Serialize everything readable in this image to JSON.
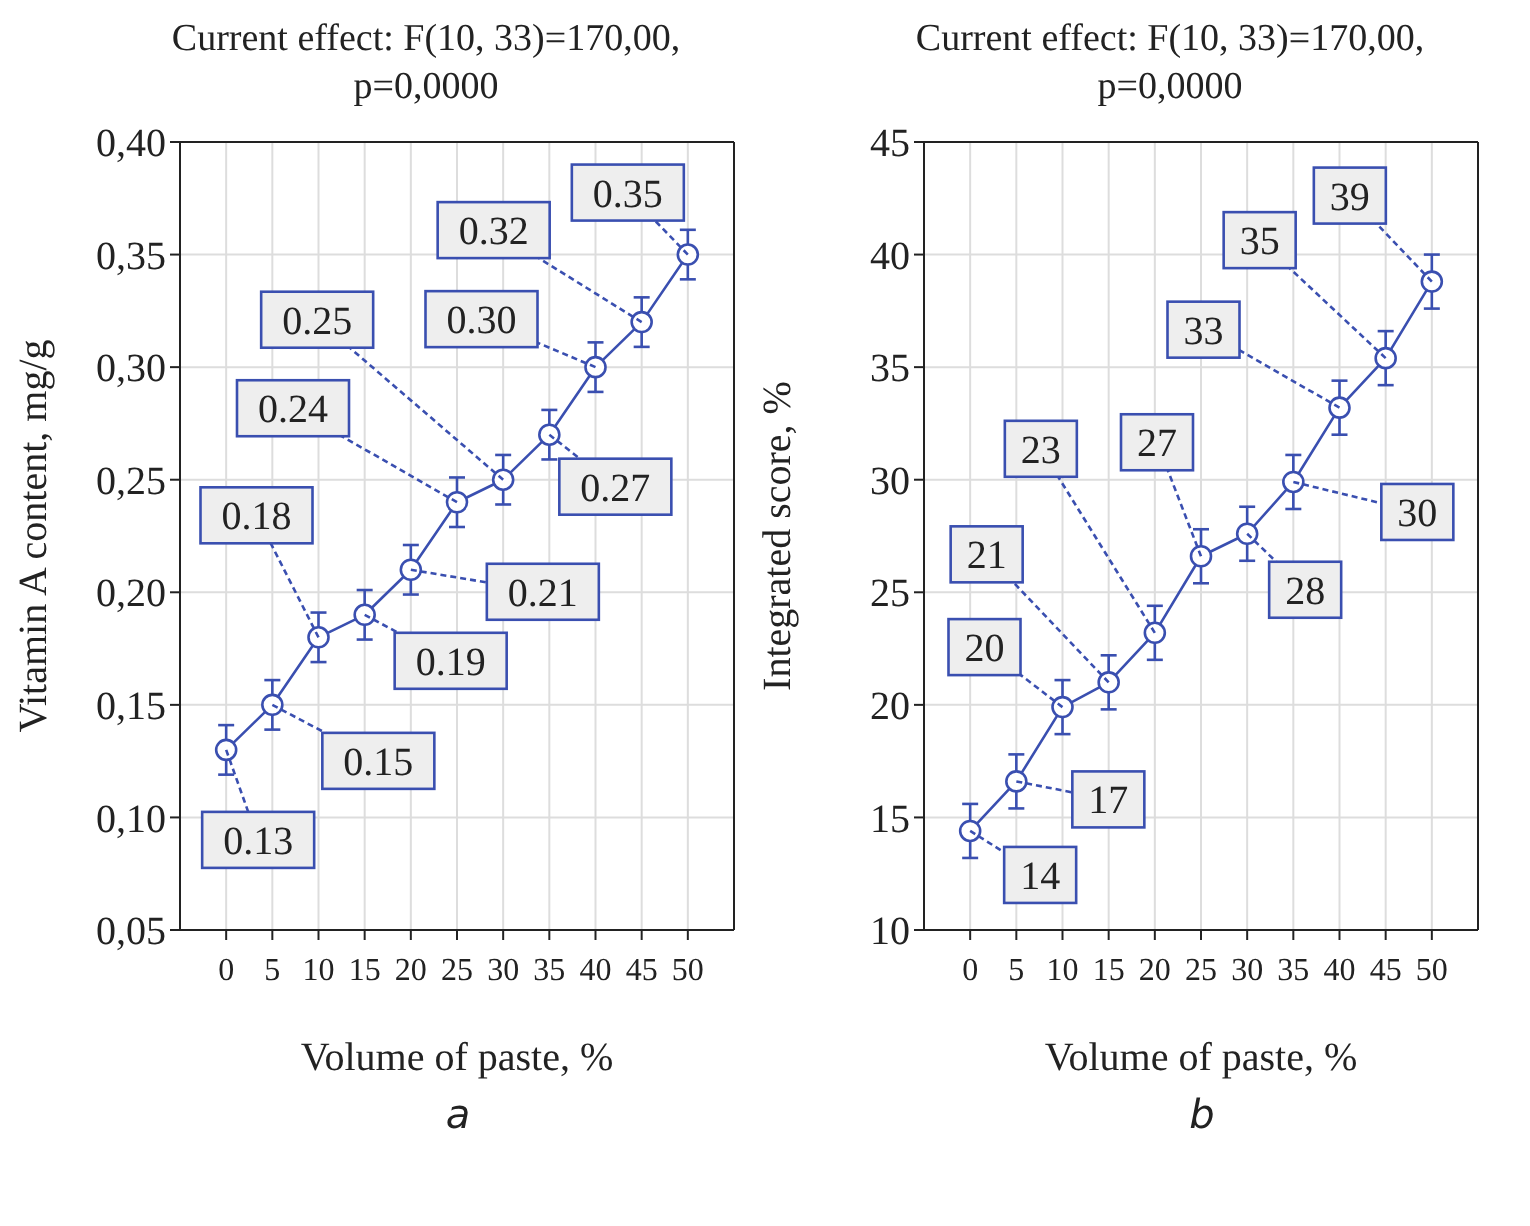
{
  "chart_data": [
    {
      "type": "line",
      "title": "Current effect: F(10, 33)=170,00, p=0,0000",
      "xlabel": "Volume of paste, %",
      "ylabel": "Vitamin A content, mg/g",
      "x": [
        0,
        5,
        10,
        15,
        20,
        25,
        30,
        35,
        40,
        45,
        50
      ],
      "values": [
        0.13,
        0.15,
        0.18,
        0.19,
        0.21,
        0.24,
        0.25,
        0.27,
        0.3,
        0.32,
        0.35
      ],
      "errors": [
        0.011,
        0.011,
        0.011,
        0.011,
        0.011,
        0.011,
        0.011,
        0.011,
        0.011,
        0.011,
        0.011
      ],
      "value_labels": [
        "0.13",
        "0.15",
        "0.18",
        "0.19",
        "0.21",
        "0.24",
        "0.25",
        "0.27",
        "0.30",
        "0.32",
        "0.35"
      ],
      "color": "#3a4fb0",
      "marker": "circle",
      "line_style": "solid",
      "grid": true,
      "xlim": [
        -5,
        55
      ],
      "xticks": [
        0,
        5,
        10,
        15,
        20,
        25,
        30,
        35,
        40,
        45,
        50
      ],
      "ylim": [
        0.05,
        0.4
      ],
      "yticks": [
        {
          "value": 0.05,
          "label": "0,05"
        },
        {
          "value": 0.1,
          "label": "0,10"
        },
        {
          "value": 0.15,
          "label": "0,15"
        },
        {
          "value": 0.2,
          "label": "0,20"
        },
        {
          "value": 0.25,
          "label": "0,25"
        },
        {
          "value": 0.3,
          "label": "0,30"
        },
        {
          "value": 0.35,
          "label": "0,35"
        },
        {
          "value": 0.4,
          "label": "0,40"
        }
      ],
      "annotations": [
        "a"
      ]
    },
    {
      "type": "line",
      "title": "Current effect: F(10, 33)=170,00, p=0,0000",
      "xlabel": "Volume of paste, %",
      "ylabel": "Integrated score, %",
      "x": [
        0,
        5,
        10,
        15,
        20,
        25,
        30,
        35,
        40,
        45,
        50
      ],
      "values": [
        14.4,
        16.6,
        19.9,
        21.0,
        23.2,
        26.6,
        27.6,
        29.9,
        33.2,
        35.4,
        38.8
      ],
      "errors": [
        1.2,
        1.2,
        1.2,
        1.2,
        1.2,
        1.2,
        1.2,
        1.2,
        1.2,
        1.2,
        1.2
      ],
      "value_labels": [
        "14",
        "17",
        "20",
        "21",
        "23",
        "27",
        "28",
        "30",
        "33",
        "35",
        "39"
      ],
      "color": "#3a4fb0",
      "marker": "circle",
      "line_style": "solid",
      "grid": true,
      "xlim": [
        -5,
        55
      ],
      "xticks": [
        0,
        5,
        10,
        15,
        20,
        25,
        30,
        35,
        40,
        45,
        50
      ],
      "ylim": [
        10,
        45
      ],
      "yticks": [
        10,
        15,
        20,
        25,
        30,
        35,
        40,
        45
      ],
      "annotations": [
        "b"
      ]
    }
  ]
}
